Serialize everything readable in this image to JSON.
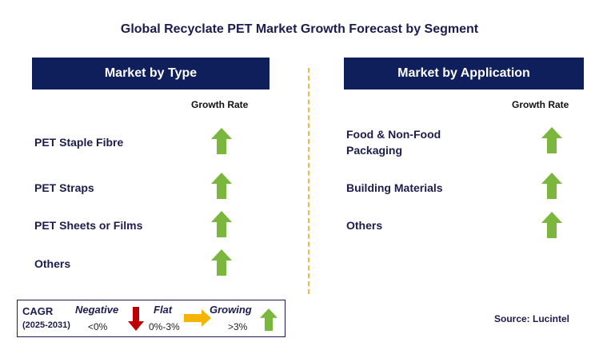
{
  "title": "Global Recyclate PET Market Growth Forecast by Segment",
  "colors": {
    "header_bg": "#0f1f5c",
    "growing": "#7ab73c",
    "negative": "#c00000",
    "flat": "#f5b400",
    "divider": "#f3b83c"
  },
  "left": {
    "header": "Market by Type",
    "column_header": "Growth Rate",
    "rows": [
      {
        "label": "PET Staple Fibre",
        "trend": "growing"
      },
      {
        "label": "PET Straps",
        "trend": "growing"
      },
      {
        "label": "PET Sheets or Films",
        "trend": "growing"
      },
      {
        "label": "Others",
        "trend": "growing"
      }
    ]
  },
  "right": {
    "header": "Market by Application",
    "column_header": "Growth Rate",
    "rows": [
      {
        "label_line1": "Food & Non-Food",
        "label_line2": "Packaging",
        "trend": "growing"
      },
      {
        "label": "Building Materials",
        "trend": "growing"
      },
      {
        "label": "Others",
        "trend": "growing"
      }
    ]
  },
  "legend": {
    "cagr": "CAGR",
    "period": "(2025-2031)",
    "negative_label": "Negative",
    "negative_value": "<0%",
    "flat_label": "Flat",
    "flat_value": "0%-3%",
    "growing_label": "Growing",
    "growing_value": ">3%"
  },
  "source": "Source: Lucintel"
}
